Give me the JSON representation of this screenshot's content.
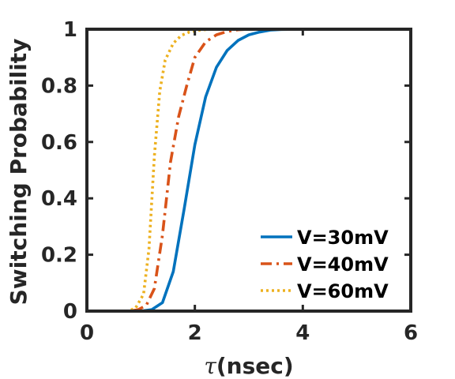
{
  "chart_data": {
    "type": "line",
    "xlabel_symbol": "τ",
    "xlabel_rest": "(nsec)",
    "ylabel": "Switching Probability",
    "xlim": [
      0,
      6
    ],
    "ylim": [
      0,
      1
    ],
    "xticks": [
      0,
      2,
      4,
      6
    ],
    "xtick_labels": [
      "0",
      "2",
      "4",
      "6"
    ],
    "yticks": [
      0,
      0.2,
      0.4,
      0.6,
      0.8,
      1
    ],
    "ytick_labels": [
      "0",
      "0.2",
      "0.4",
      "0.6",
      "0.8",
      "1"
    ],
    "grid": false,
    "legend_position": "bottom-right",
    "series": [
      {
        "name": "V=30mV",
        "color": "#0072BD",
        "dash": "solid",
        "x": [
          0,
          0.8,
          1.0,
          1.2,
          1.4,
          1.6,
          1.8,
          2.0,
          2.2,
          2.4,
          2.6,
          2.8,
          3.0,
          3.2,
          3.4,
          3.6,
          4.0,
          6.0
        ],
        "y": [
          0,
          0,
          0,
          0.005,
          0.03,
          0.14,
          0.36,
          0.59,
          0.76,
          0.865,
          0.925,
          0.96,
          0.98,
          0.99,
          0.997,
          0.999,
          1,
          1
        ]
      },
      {
        "name": "V=40mV",
        "color": "#D95319",
        "dash": "dashdot",
        "x": [
          0,
          0.8,
          0.95,
          1.1,
          1.25,
          1.4,
          1.55,
          1.7,
          1.85,
          2.0,
          2.2,
          2.4,
          2.6,
          2.8,
          3.0,
          6.0
        ],
        "y": [
          0,
          0,
          0.005,
          0.02,
          0.08,
          0.27,
          0.53,
          0.69,
          0.8,
          0.9,
          0.955,
          0.98,
          0.992,
          0.998,
          1,
          1
        ]
      },
      {
        "name": "V=60mV",
        "color": "#EDB120",
        "dash": "dotted",
        "x": [
          0,
          0.75,
          0.9,
          1.05,
          1.15,
          1.25,
          1.35,
          1.45,
          1.6,
          1.75,
          1.9,
          2.1,
          2.3,
          2.6,
          6.0
        ],
        "y": [
          0,
          0,
          0.01,
          0.06,
          0.22,
          0.55,
          0.78,
          0.89,
          0.95,
          0.978,
          0.99,
          0.997,
          1,
          1,
          1
        ]
      }
    ]
  }
}
